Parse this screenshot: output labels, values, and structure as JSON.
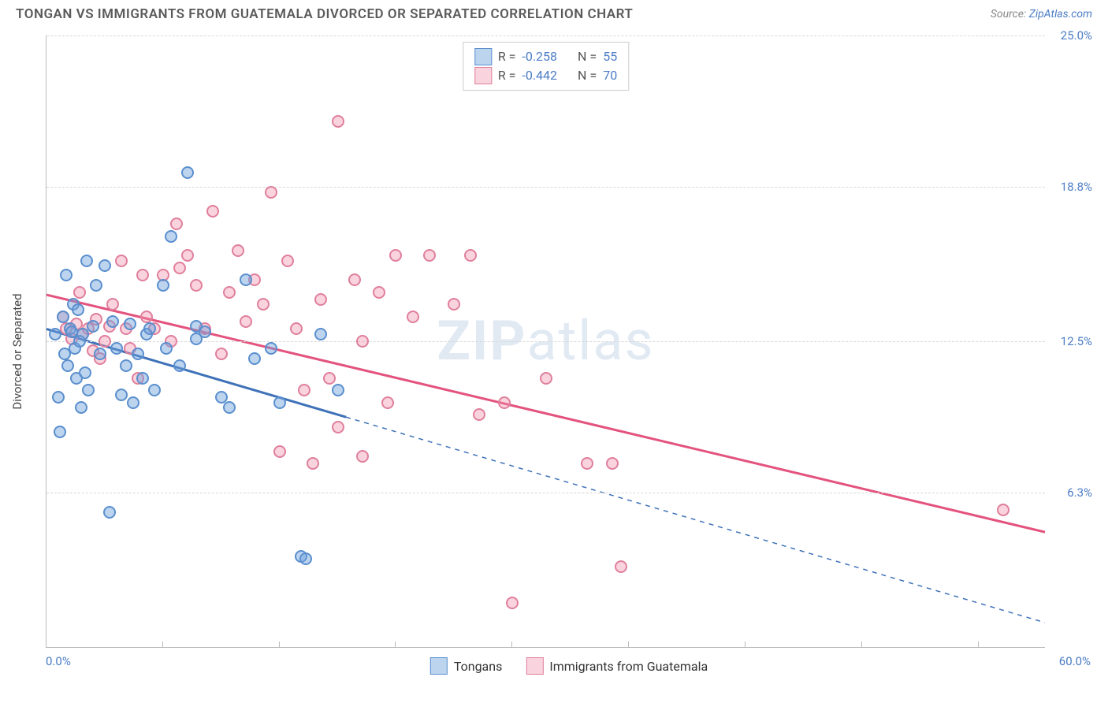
{
  "header": {
    "title": "TONGAN VS IMMIGRANTS FROM GUATEMALA DIVORCED OR SEPARATED CORRELATION CHART",
    "source_prefix": "Source: ",
    "source_link": "ZipAtlas.com"
  },
  "ylabel": "Divorced or Separated",
  "watermark_bold": "ZIP",
  "watermark_rest": "atlas",
  "axes": {
    "xmin": 0,
    "xmax": 60,
    "ymin": 0,
    "ymax": 25,
    "x_start_label": "0.0%",
    "x_end_label": "60.0%",
    "y_ticks": [
      {
        "v": 6.3,
        "label": "6.3%"
      },
      {
        "v": 12.5,
        "label": "12.5%"
      },
      {
        "v": 18.8,
        "label": "18.8%"
      },
      {
        "v": 25.0,
        "label": "25.0%"
      }
    ],
    "x_tick_step": 7
  },
  "series": {
    "blue": {
      "label_short": "Tongans",
      "fill": "rgba(108,160,220,0.45)",
      "stroke": "#5a8fce",
      "line_color": "#3f72b8",
      "R": "-0.258",
      "N": "55",
      "trend": {
        "y_at_xmin": 13.0,
        "y_at_xmax": 1.0,
        "solid_until_x": 18
      },
      "points": [
        [
          0.5,
          12.8
        ],
        [
          0.7,
          10.2
        ],
        [
          0.8,
          8.8
        ],
        [
          1.0,
          13.5
        ],
        [
          1.1,
          12.0
        ],
        [
          1.2,
          15.2
        ],
        [
          1.3,
          11.5
        ],
        [
          1.4,
          13.0
        ],
        [
          1.5,
          12.9
        ],
        [
          1.6,
          14.0
        ],
        [
          1.7,
          12.2
        ],
        [
          1.8,
          11.0
        ],
        [
          1.9,
          13.8
        ],
        [
          2.0,
          12.5
        ],
        [
          2.1,
          9.8
        ],
        [
          2.2,
          12.8
        ],
        [
          2.3,
          11.2
        ],
        [
          2.4,
          15.8
        ],
        [
          2.5,
          10.5
        ],
        [
          2.8,
          13.1
        ],
        [
          3.0,
          14.8
        ],
        [
          3.2,
          12.0
        ],
        [
          3.5,
          15.6
        ],
        [
          3.8,
          5.5
        ],
        [
          4.0,
          13.3
        ],
        [
          4.2,
          12.2
        ],
        [
          4.5,
          10.3
        ],
        [
          4.8,
          11.5
        ],
        [
          5.0,
          13.2
        ],
        [
          5.2,
          10.0
        ],
        [
          5.5,
          12.0
        ],
        [
          5.8,
          11.0
        ],
        [
          6.0,
          12.8
        ],
        [
          6.2,
          13.0
        ],
        [
          6.5,
          10.5
        ],
        [
          7.0,
          14.8
        ],
        [
          7.2,
          12.2
        ],
        [
          7.5,
          16.8
        ],
        [
          8.0,
          11.5
        ],
        [
          8.5,
          19.4
        ],
        [
          9.0,
          13.1
        ],
        [
          9.0,
          12.6
        ],
        [
          9.5,
          12.9
        ],
        [
          10.5,
          10.2
        ],
        [
          11.0,
          9.8
        ],
        [
          12.0,
          15.0
        ],
        [
          12.5,
          11.8
        ],
        [
          13.5,
          12.2
        ],
        [
          14.0,
          10.0
        ],
        [
          15.3,
          3.7
        ],
        [
          15.6,
          3.6
        ],
        [
          16.5,
          12.8
        ],
        [
          17.5,
          10.5
        ]
      ]
    },
    "pink": {
      "label_short": "Immigrants from Guatemala",
      "fill": "rgba(240,145,170,0.40)",
      "stroke": "#e07f9c",
      "line_color": "#e3537d",
      "R": "-0.442",
      "N": "70",
      "trend": {
        "y_at_xmin": 14.4,
        "y_at_xmax": 4.7,
        "solid_until_x": 60
      },
      "points": [
        [
          1.0,
          13.5
        ],
        [
          1.2,
          13.0
        ],
        [
          1.5,
          12.6
        ],
        [
          1.8,
          13.2
        ],
        [
          2.0,
          14.5
        ],
        [
          2.2,
          12.8
        ],
        [
          2.5,
          13.0
        ],
        [
          2.8,
          12.1
        ],
        [
          3.0,
          13.4
        ],
        [
          3.2,
          11.8
        ],
        [
          3.5,
          12.5
        ],
        [
          3.8,
          13.1
        ],
        [
          4.0,
          14.0
        ],
        [
          4.5,
          15.8
        ],
        [
          4.8,
          13.0
        ],
        [
          5.0,
          12.2
        ],
        [
          5.5,
          11.0
        ],
        [
          5.8,
          15.2
        ],
        [
          6.0,
          13.5
        ],
        [
          6.5,
          13.0
        ],
        [
          7.0,
          15.2
        ],
        [
          7.5,
          12.5
        ],
        [
          7.8,
          17.3
        ],
        [
          8.0,
          15.5
        ],
        [
          8.5,
          16.0
        ],
        [
          9.0,
          14.8
        ],
        [
          9.5,
          13.0
        ],
        [
          10.0,
          17.8
        ],
        [
          10.5,
          12.0
        ],
        [
          11.0,
          14.5
        ],
        [
          11.5,
          16.2
        ],
        [
          12.0,
          13.3
        ],
        [
          12.5,
          15.0
        ],
        [
          13.0,
          14.0
        ],
        [
          13.5,
          18.6
        ],
        [
          14.0,
          8.0
        ],
        [
          14.5,
          15.8
        ],
        [
          15.0,
          13.0
        ],
        [
          15.5,
          10.5
        ],
        [
          16.0,
          7.5
        ],
        [
          16.5,
          14.2
        ],
        [
          17.0,
          11.0
        ],
        [
          17.5,
          9.0
        ],
        [
          17.5,
          21.5
        ],
        [
          18.5,
          15.0
        ],
        [
          19.0,
          12.5
        ],
        [
          19.0,
          7.8
        ],
        [
          20.0,
          14.5
        ],
        [
          20.5,
          10.0
        ],
        [
          21.0,
          16.0
        ],
        [
          22.0,
          13.5
        ],
        [
          23.0,
          16.0
        ],
        [
          24.5,
          14.0
        ],
        [
          25.5,
          16.0
        ],
        [
          26.0,
          9.5
        ],
        [
          27.5,
          10.0
        ],
        [
          28.0,
          1.8
        ],
        [
          30.0,
          11.0
        ],
        [
          32.5,
          7.5
        ],
        [
          34.0,
          7.5
        ],
        [
          34.5,
          3.3
        ],
        [
          57.5,
          5.6
        ]
      ]
    }
  },
  "stat_box": {
    "R_label": "R =",
    "N_label": "N ="
  },
  "colors": {
    "axis_label": "#4a7cc4",
    "grid": "#d8d8d8"
  }
}
